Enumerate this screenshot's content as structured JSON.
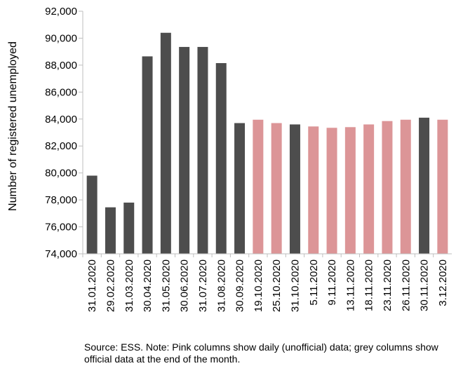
{
  "chart_data": {
    "type": "bar",
    "title": "",
    "xlabel": "",
    "ylabel": "Number of registered unemployed",
    "ylim": [
      74000,
      92000
    ],
    "yticks": [
      74000,
      76000,
      78000,
      80000,
      82000,
      84000,
      86000,
      88000,
      90000,
      92000
    ],
    "ytick_labels": [
      "74,000",
      "76,000",
      "78,000",
      "80,000",
      "82,000",
      "84,000",
      "86,000",
      "88,000",
      "90,000",
      "92,000"
    ],
    "grid": false,
    "legend": "none",
    "categories": [
      "31.01.2020",
      "29.02.2020",
      "31.03.2020",
      "30.04.2020",
      "31.05.2020",
      "30.06.2020",
      "31.07.2020",
      "31.08.2020",
      "30.09.2020",
      "19.10.2020",
      "25.10.2020",
      "31.10.2020",
      "5.11.2020",
      "9.11.2020",
      "13.11.2020",
      "18.11.2020",
      "23.11.2020",
      "26.11.2020",
      "30.11.2020",
      "3.12.2020"
    ],
    "values": [
      79800,
      77450,
      77800,
      88650,
      90400,
      89350,
      89350,
      88150,
      83700,
      83950,
      83700,
      83600,
      83450,
      83350,
      83400,
      83600,
      83850,
      83950,
      84100,
      83950
    ],
    "kind": [
      "official",
      "official",
      "official",
      "official",
      "official",
      "official",
      "official",
      "official",
      "official",
      "daily",
      "daily",
      "official",
      "daily",
      "daily",
      "daily",
      "daily",
      "daily",
      "daily",
      "official",
      "daily"
    ],
    "colors": {
      "official": "#4d4d4d",
      "daily": "#dc9597",
      "axis": "#bfbfbf"
    }
  },
  "note": "Source: ESS. Note: Pink columns show daily (unofficial) data; grey columns show official data at the end of the month."
}
